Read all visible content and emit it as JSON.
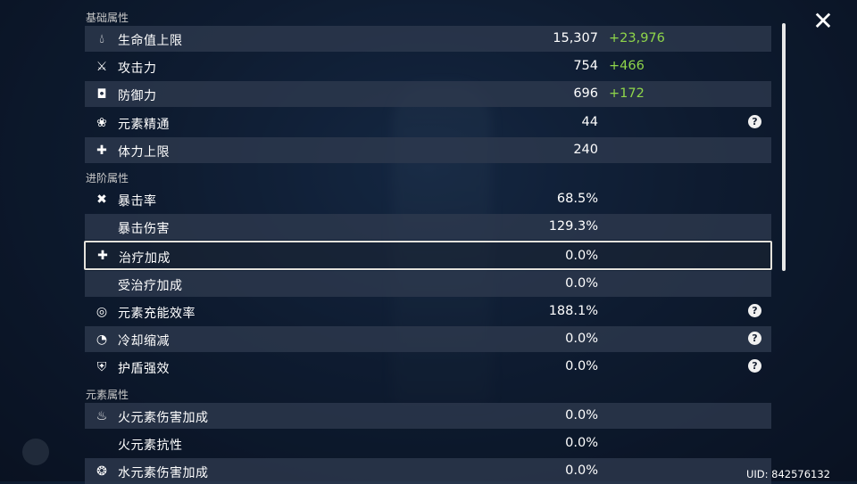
{
  "sections": {
    "base": "基础属性",
    "advanced": "进阶属性",
    "elemental": "元素属性"
  },
  "base_stats": [
    {
      "icon": "drop-icon",
      "label": "生命值上限",
      "value": "15,307",
      "bonus": "+23,976"
    },
    {
      "icon": "sword-icon",
      "label": "攻击力",
      "value": "754",
      "bonus": "+466"
    },
    {
      "icon": "shield-icon",
      "label": "防御力",
      "value": "696",
      "bonus": "+172"
    },
    {
      "icon": "elemental-mastery-icon",
      "label": "元素精通",
      "value": "44",
      "help": "?"
    },
    {
      "icon": "stamina-icon",
      "label": "体力上限",
      "value": "240"
    }
  ],
  "advanced_stats": [
    {
      "icon": "crit-icon",
      "label": "暴击率",
      "value": "68.5%"
    },
    {
      "label": "暴击伤害",
      "value": "129.3%"
    },
    {
      "icon": "healing-cross-icon",
      "label": "治疗加成",
      "value": "0.0%",
      "selected": true
    },
    {
      "label": "受治疗加成",
      "value": "0.0%"
    },
    {
      "icon": "energy-recharge-icon",
      "label": "元素充能效率",
      "value": "188.1%",
      "help": "?"
    },
    {
      "icon": "cooldown-icon",
      "label": "冷却缩减",
      "value": "0.0%",
      "help": "?"
    },
    {
      "icon": "shield-plus-icon",
      "label": "护盾强效",
      "value": "0.0%",
      "help": "?"
    }
  ],
  "elemental_stats": [
    {
      "icon": "pyro-icon",
      "label": "火元素伤害加成",
      "value": "0.0%"
    },
    {
      "label": "火元素抗性",
      "value": "0.0%"
    },
    {
      "icon": "hydro-icon",
      "label": "水元素伤害加成",
      "value": "0.0%"
    }
  ],
  "close_label": "✕",
  "uid": "UID: 842576132",
  "colors": {
    "bonus": "#8fd64a",
    "row_shaded": "#2e3a4e",
    "selected_border": "#e4e2dc"
  }
}
